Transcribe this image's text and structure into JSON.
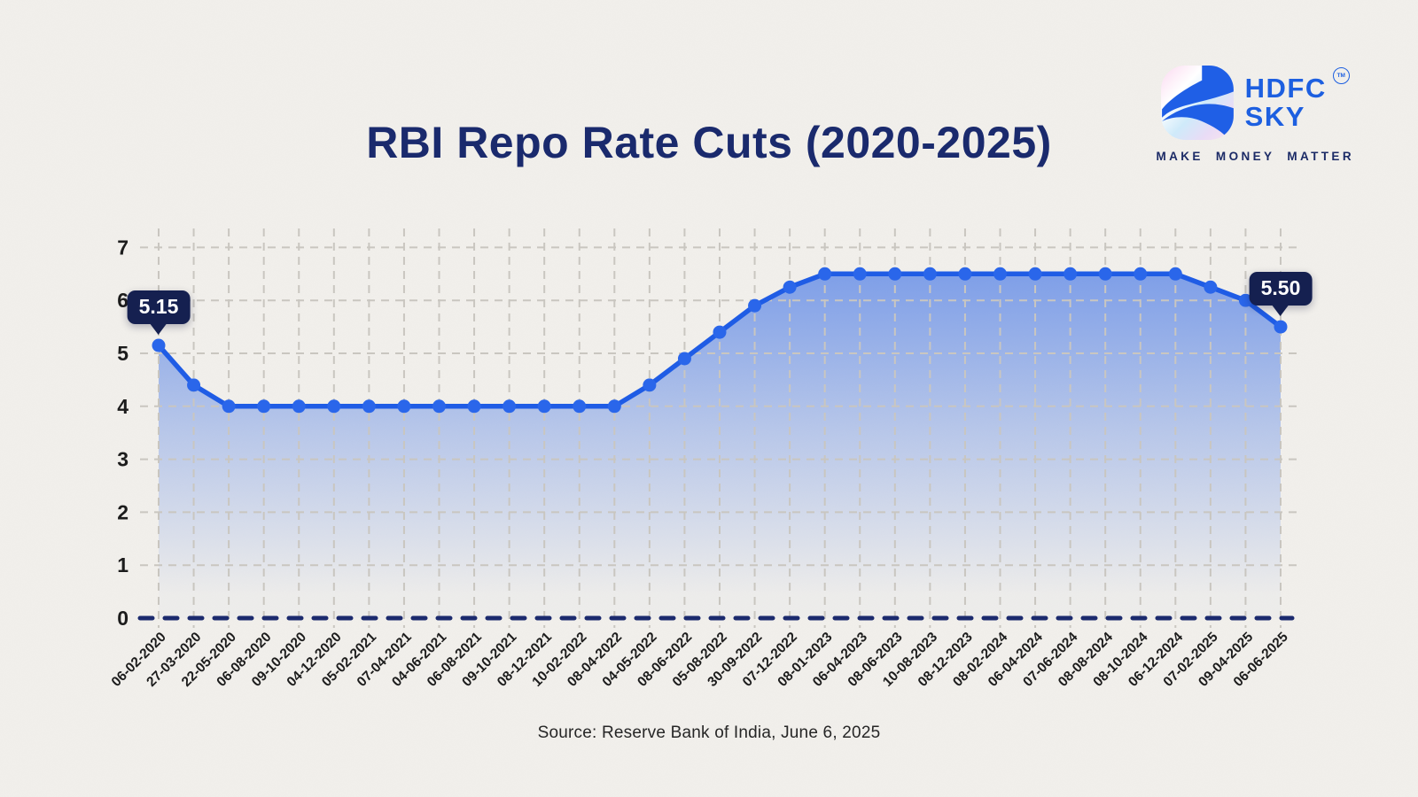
{
  "theme": {
    "paper_bg": "#f2f0ec",
    "title_color": "#1a2a6d",
    "brand_blue": "#1d5fe0",
    "tagline_color": "#1b2a66",
    "callout_bg": "#152050",
    "callout_text": "#ffffff",
    "axis_text_color": "#1c1c1c"
  },
  "logo": {
    "icon": "hdfc-sky-swoosh-icon",
    "brand_line1": "HDFC",
    "brand_line2": "SKY",
    "trademark": "TM",
    "tagline": "MAKE MONEY MATTER"
  },
  "chart_data": {
    "type": "area",
    "title": "RBI Repo Rate Cuts (2020-2025)",
    "xlabel": "",
    "ylabel": "",
    "ylim": [
      0,
      7
    ],
    "y_ticks": [
      0,
      1,
      2,
      3,
      4,
      5,
      6,
      7
    ],
    "grid": true,
    "legend": "none",
    "x_labels": [
      "06-02-2020",
      "27-03-2020",
      "22-05-2020",
      "06-08-2020",
      "09-10-2020",
      "04-12-2020",
      "05-02-2021",
      "07-04-2021",
      "04-06-2021",
      "06-08-2021",
      "09-10-2021",
      "08-12-2021",
      "10-02-2022",
      "08-04-2022",
      "04-05-2022",
      "08-06-2022",
      "05-08-2022",
      "30-09-2022",
      "07-12-2022",
      "08-01-2023",
      "06-04-2023",
      "08-06-2023",
      "10-08-2023",
      "08-12-2023",
      "08-02-2024",
      "06-04-2024",
      "07-06-2024",
      "08-08-2024",
      "08-10-2024",
      "06-12-2024",
      "07-02-2025",
      "09-04-2025",
      "06-06-2025"
    ],
    "values": [
      5.15,
      4.4,
      4.0,
      4.0,
      4.0,
      4.0,
      4.0,
      4.0,
      4.0,
      4.0,
      4.0,
      4.0,
      4.0,
      4.0,
      4.4,
      4.9,
      5.4,
      5.9,
      6.25,
      6.5,
      6.5,
      6.5,
      6.5,
      6.5,
      6.5,
      6.5,
      6.5,
      6.5,
      6.5,
      6.5,
      6.25,
      6.0,
      5.5
    ],
    "annotations": [
      {
        "index": 0,
        "label": "5.15"
      },
      {
        "index": 32,
        "label": "5.50"
      }
    ],
    "line_color": "#1f5ce5",
    "point_color": "#2a66ea",
    "grid_color": "#c9c6c0",
    "zero_line_color": "#1b2a6e"
  },
  "footer": {
    "source": "Source: Reserve Bank of India, June 6, 2025"
  }
}
